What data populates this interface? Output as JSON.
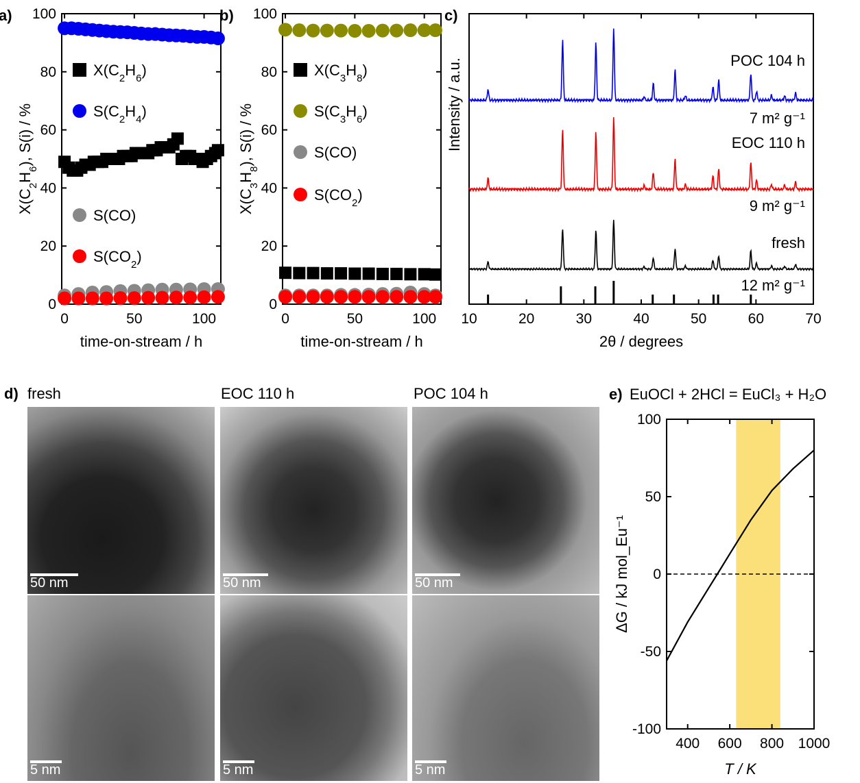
{
  "panels": {
    "a": {
      "letter": "a)"
    },
    "b": {
      "letter": "b)"
    },
    "c": {
      "letter": "c)"
    },
    "d": {
      "letter": "d)"
    },
    "e": {
      "letter": "e)"
    }
  },
  "chart_data": [
    {
      "id": "a",
      "type": "scatter",
      "xlabel": "time-on-stream / h",
      "ylabel": "X(C2H6), S(i) / %",
      "xlim": [
        -2,
        112
      ],
      "ylim": [
        0,
        100
      ],
      "xticks": [
        "0",
        "50",
        "100"
      ],
      "yticks": [
        "0",
        "20",
        "40",
        "60",
        "80",
        "100"
      ],
      "legend": [
        "X(C2H6)",
        "S(C2H4)",
        "S(CO)",
        "S(CO2)"
      ],
      "series": [
        {
          "name": "X(C2H6)",
          "color": "#000000",
          "marker": "square",
          "x": [
            0,
            3,
            6,
            9,
            12,
            15,
            18,
            21,
            24,
            27,
            30,
            33,
            36,
            39,
            42,
            45,
            48,
            51,
            54,
            57,
            60,
            63,
            66,
            69,
            72,
            75,
            78,
            81,
            84,
            87,
            90,
            93,
            96,
            99,
            102,
            105,
            108,
            110
          ],
          "y": [
            49,
            47,
            46,
            46,
            47,
            48,
            48,
            49,
            49,
            49,
            50,
            50,
            50,
            50,
            51,
            51,
            51,
            52,
            52,
            52,
            52,
            53,
            53,
            54,
            54,
            54,
            55,
            57,
            50,
            51,
            51,
            50,
            50,
            49,
            50,
            51,
            52,
            53
          ]
        },
        {
          "name": "S(C2H4)",
          "color": "#0000ee",
          "marker": "circle",
          "x": [
            0,
            5,
            10,
            15,
            20,
            25,
            30,
            35,
            40,
            45,
            50,
            55,
            60,
            65,
            70,
            75,
            80,
            85,
            90,
            95,
            100,
            105,
            110
          ],
          "y": [
            95,
            95,
            94.8,
            94.6,
            94.4,
            94.2,
            94,
            93.8,
            93.7,
            93.6,
            93.4,
            93.2,
            93,
            93,
            92.8,
            92.6,
            92.5,
            92.4,
            92.2,
            92,
            92,
            91.8,
            91.5
          ]
        },
        {
          "name": "S(CO)",
          "color": "#888888",
          "marker": "circle",
          "x": [
            0,
            10,
            20,
            30,
            40,
            50,
            60,
            70,
            80,
            90,
            100,
            110
          ],
          "y": [
            3,
            3.5,
            4,
            4.2,
            4.5,
            4.6,
            4.8,
            5,
            5,
            5.1,
            5.2,
            5.2
          ]
        },
        {
          "name": "S(CO2)",
          "color": "#ff0000",
          "marker": "circle",
          "x": [
            0,
            10,
            20,
            30,
            40,
            50,
            60,
            70,
            80,
            90,
            100,
            110
          ],
          "y": [
            2,
            2,
            2,
            2,
            2.1,
            2.1,
            2.2,
            2.2,
            2.3,
            2.3,
            2.4,
            2.5
          ]
        }
      ]
    },
    {
      "id": "b",
      "type": "scatter",
      "xlabel": "time-on-stream / h",
      "ylabel": "X(C3H8), S(i) / %",
      "xlim": [
        -2,
        112
      ],
      "ylim": [
        0,
        100
      ],
      "xticks": [
        "0",
        "50",
        "100"
      ],
      "yticks": [
        "0",
        "20",
        "40",
        "60",
        "80",
        "100"
      ],
      "legend": [
        "X(C3H8)",
        "S(C3H6)",
        "S(CO)",
        "S(CO2)"
      ],
      "series": [
        {
          "name": "X(C3H8)",
          "color": "#000000",
          "marker": "square",
          "x": [
            0,
            10,
            20,
            30,
            40,
            50,
            60,
            70,
            80,
            90,
            100,
            108
          ],
          "y": [
            10.8,
            10.7,
            10.7,
            10.6,
            10.6,
            10.5,
            10.5,
            10.4,
            10.4,
            10.3,
            10.3,
            10.2
          ]
        },
        {
          "name": "S(C3H6)",
          "color": "#8b8b00",
          "marker": "circle",
          "x": [
            0,
            10,
            20,
            30,
            40,
            50,
            60,
            70,
            80,
            90,
            100,
            108
          ],
          "y": [
            94.5,
            94.3,
            94.2,
            94.2,
            94.2,
            94.1,
            94.1,
            94.2,
            94.2,
            94.3,
            94.3,
            94.3
          ]
        },
        {
          "name": "S(CO)",
          "color": "#888888",
          "marker": "circle",
          "x": [
            0,
            10,
            20,
            30,
            40,
            50,
            60,
            70,
            80,
            90,
            100,
            108
          ],
          "y": [
            3,
            3,
            3,
            3,
            3.2,
            3.2,
            3.3,
            3.5,
            3.6,
            4,
            3.5,
            3
          ]
        },
        {
          "name": "S(CO2)",
          "color": "#ff0000",
          "marker": "circle",
          "x": [
            0,
            10,
            20,
            30,
            40,
            50,
            60,
            70,
            80,
            90,
            100,
            108
          ],
          "y": [
            2.5,
            2.5,
            2.5,
            2.5,
            2.5,
            2.5,
            2.5,
            2.5,
            2.5,
            2.5,
            2.5,
            2.5
          ]
        }
      ]
    },
    {
      "id": "c",
      "type": "line",
      "xlabel": "2θ / degrees",
      "ylabel": "Intensity / a.u.",
      "xlim": [
        10,
        70
      ],
      "xticks": [
        "10",
        "20",
        "30",
        "40",
        "50",
        "60",
        "70"
      ],
      "peaks": [
        {
          "pos": 13.3,
          "h": 0.18
        },
        {
          "pos": 26.3,
          "h": 1.0
        },
        {
          "pos": 32.1,
          "h": 0.95
        },
        {
          "pos": 35.2,
          "h": 1.2
        },
        {
          "pos": 40.5,
          "h": 0.06
        },
        {
          "pos": 42.1,
          "h": 0.28
        },
        {
          "pos": 45.9,
          "h": 0.5
        },
        {
          "pos": 47.7,
          "h": 0.08
        },
        {
          "pos": 52.5,
          "h": 0.22
        },
        {
          "pos": 53.5,
          "h": 0.33
        },
        {
          "pos": 59.1,
          "h": 0.45
        },
        {
          "pos": 60.1,
          "h": 0.15
        },
        {
          "pos": 62.7,
          "h": 0.08
        },
        {
          "pos": 65.0,
          "h": 0.07
        },
        {
          "pos": 66.9,
          "h": 0.12
        }
      ],
      "series": [
        {
          "name": "POC 104 h",
          "color": "#0000ee",
          "area_label": "7 m² g⁻¹"
        },
        {
          "name": "EOC 110 h",
          "color": "#ee0000",
          "area_label": "9 m² g⁻¹"
        },
        {
          "name": "fresh",
          "color": "#000000",
          "area_label": "12 m² g⁻¹"
        }
      ],
      "reference": [
        13.3,
        26.0,
        32.0,
        35.2,
        42.0,
        45.7,
        52.6,
        53.4,
        59.1
      ]
    },
    {
      "id": "e",
      "type": "line",
      "title": "EuOCl + 2HCl = EuCl₃ + H₂O",
      "xlabel": "T / K",
      "ylabel": "ΔG / kJ mol_Eu⁻¹",
      "xlim": [
        300,
        1000
      ],
      "ylim": [
        -100,
        100
      ],
      "xticks": [
        "400",
        "600",
        "800",
        "1000"
      ],
      "yticks": [
        "-100",
        "-50",
        "0",
        "50",
        "100"
      ],
      "highlight_range": [
        630,
        840
      ],
      "highlight_color": "#fbe07a",
      "x": [
        300,
        400,
        500,
        550,
        600,
        700,
        800,
        900,
        1000
      ],
      "y": [
        -56,
        -31,
        -9,
        2,
        13,
        35,
        54,
        68,
        80
      ]
    }
  ],
  "tem": {
    "labels": [
      "fresh",
      "EOC 110 h",
      "POC 104 h"
    ],
    "scale_top": "50 nm",
    "scale_bottom": "5 nm"
  }
}
